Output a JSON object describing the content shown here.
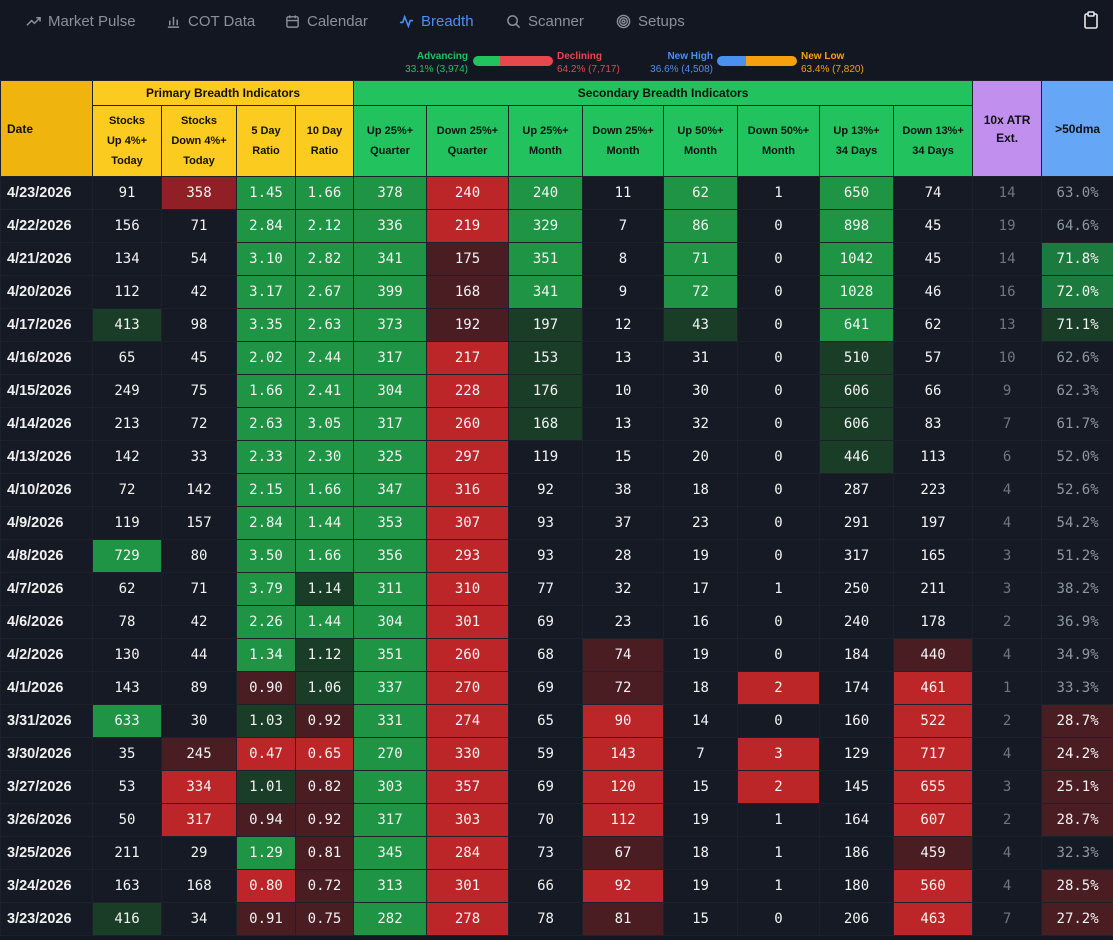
{
  "nav": {
    "items": [
      {
        "label": "Market Pulse",
        "icon": "trend-up-icon"
      },
      {
        "label": "COT Data",
        "icon": "bar-chart-icon"
      },
      {
        "label": "Calendar",
        "icon": "calendar-icon"
      },
      {
        "label": "Breadth",
        "icon": "activity-icon",
        "active": true
      },
      {
        "label": "Scanner",
        "icon": "search-icon"
      },
      {
        "label": "Setups",
        "icon": "target-icon"
      }
    ],
    "clipboard_icon": "clipboard-icon"
  },
  "legend": {
    "advancing_label": "Advancing",
    "advancing_value": "33.1% (3,974)",
    "declining_label": "Declining",
    "declining_value": "64.2% (7,717)",
    "advancing_fraction": 0.331,
    "declining_fraction": 0.642,
    "new_high_label": "New High",
    "new_high_value": "36.6% (4,508)",
    "new_low_label": "New Low",
    "new_low_value": "63.4% (7,820)",
    "new_high_fraction": 0.366,
    "new_low_fraction": 0.634,
    "colors": {
      "advancing": "#22c35e",
      "declining": "#e5484d",
      "new_high": "#4a90f0",
      "new_low": "#f5a00f"
    }
  },
  "table": {
    "date_header": "Date",
    "primary_header": "Primary Breadth Indicators",
    "secondary_header": "Secondary Breadth Indicators",
    "atr_header": "10x ATR Ext.",
    "dma_header": ">50dma",
    "columns": [
      {
        "line1": "Stocks",
        "line2": "Up 4%+",
        "line3": "Today"
      },
      {
        "line1": "Stocks",
        "line2": "Down 4%+",
        "line3": "Today"
      },
      {
        "line1": "5 Day",
        "line2": "Ratio"
      },
      {
        "line1": "10 Day",
        "line2": "Ratio"
      },
      {
        "line1": "Up 25%+",
        "line2": "Quarter"
      },
      {
        "line1": "Down 25%+",
        "line2": "Quarter"
      },
      {
        "line1": "Up 25%+",
        "line2": "Month"
      },
      {
        "line1": "Down 25%+",
        "line2": "Month"
      },
      {
        "line1": "Up 50%+",
        "line2": "Month"
      },
      {
        "line1": "Down 50%+",
        "line2": "Month"
      },
      {
        "line1": "Up 13%+",
        "line2": "34 Days"
      },
      {
        "line1": "Down 13%+",
        "line2": "34 Days"
      }
    ],
    "rows": [
      {
        "date": "4/23/2026",
        "cells": [
          "91",
          "358",
          "1.45",
          "1.66",
          "378",
          "240",
          "240",
          "11",
          "62",
          "1",
          "650",
          "74",
          "14",
          "63.0%"
        ],
        "shades": [
          "",
          "r2",
          "g3",
          "g3",
          "g3",
          "r3",
          "g3",
          "",
          "g3",
          "",
          "g3",
          "",
          "",
          ""
        ]
      },
      {
        "date": "4/22/2026",
        "cells": [
          "156",
          "71",
          "2.84",
          "2.12",
          "336",
          "219",
          "329",
          "7",
          "86",
          "0",
          "898",
          "45",
          "19",
          "64.6%"
        ],
        "shades": [
          "",
          "",
          "g3",
          "g3",
          "g3",
          "r3",
          "g3",
          "",
          "g3",
          "",
          "g3",
          "",
          "",
          ""
        ]
      },
      {
        "date": "4/21/2026",
        "cells": [
          "134",
          "54",
          "3.10",
          "2.82",
          "341",
          "175",
          "351",
          "8",
          "71",
          "0",
          "1042",
          "45",
          "14",
          "71.8%"
        ],
        "shades": [
          "",
          "",
          "g3",
          "g3",
          "g3",
          "r1",
          "g3",
          "",
          "g3",
          "",
          "g3",
          "",
          "",
          "g2"
        ]
      },
      {
        "date": "4/20/2026",
        "cells": [
          "112",
          "42",
          "3.17",
          "2.67",
          "399",
          "168",
          "341",
          "9",
          "72",
          "0",
          "1028",
          "46",
          "16",
          "72.0%"
        ],
        "shades": [
          "",
          "",
          "g3",
          "g3",
          "g3",
          "r1",
          "g3",
          "",
          "g3",
          "",
          "g3",
          "",
          "",
          "g2"
        ]
      },
      {
        "date": "4/17/2026",
        "cells": [
          "413",
          "98",
          "3.35",
          "2.63",
          "373",
          "192",
          "197",
          "12",
          "43",
          "0",
          "641",
          "62",
          "13",
          "71.1%"
        ],
        "shades": [
          "g1",
          "",
          "g3",
          "g3",
          "g3",
          "r1",
          "g1",
          "",
          "g1",
          "",
          "g3",
          "",
          "",
          "g1"
        ]
      },
      {
        "date": "4/16/2026",
        "cells": [
          "65",
          "45",
          "2.02",
          "2.44",
          "317",
          "217",
          "153",
          "13",
          "31",
          "0",
          "510",
          "57",
          "10",
          "62.6%"
        ],
        "shades": [
          "",
          "",
          "g3",
          "g3",
          "g3",
          "r3",
          "g1",
          "",
          "",
          "",
          "g1",
          "",
          "",
          ""
        ]
      },
      {
        "date": "4/15/2026",
        "cells": [
          "249",
          "75",
          "1.66",
          "2.41",
          "304",
          "228",
          "176",
          "10",
          "30",
          "0",
          "606",
          "66",
          "9",
          "62.3%"
        ],
        "shades": [
          "",
          "",
          "g3",
          "g3",
          "g3",
          "r3",
          "g1",
          "",
          "",
          "",
          "g1",
          "",
          "",
          ""
        ]
      },
      {
        "date": "4/14/2026",
        "cells": [
          "213",
          "72",
          "2.63",
          "3.05",
          "317",
          "260",
          "168",
          "13",
          "32",
          "0",
          "606",
          "83",
          "7",
          "61.7%"
        ],
        "shades": [
          "",
          "",
          "g3",
          "g3",
          "g3",
          "r3",
          "g1",
          "",
          "",
          "",
          "g1",
          "",
          "",
          ""
        ]
      },
      {
        "date": "4/13/2026",
        "cells": [
          "142",
          "33",
          "2.33",
          "2.30",
          "325",
          "297",
          "119",
          "15",
          "20",
          "0",
          "446",
          "113",
          "6",
          "52.0%"
        ],
        "shades": [
          "",
          "",
          "g3",
          "g3",
          "g3",
          "r3",
          "",
          "",
          "",
          "",
          "g1",
          "",
          "",
          ""
        ]
      },
      {
        "date": "4/10/2026",
        "cells": [
          "72",
          "142",
          "2.15",
          "1.66",
          "347",
          "316",
          "92",
          "38",
          "18",
          "0",
          "287",
          "223",
          "4",
          "52.6%"
        ],
        "shades": [
          "",
          "",
          "g3",
          "g3",
          "g3",
          "r3",
          "",
          "",
          "",
          "",
          "",
          "",
          "",
          ""
        ]
      },
      {
        "date": "4/9/2026",
        "cells": [
          "119",
          "157",
          "2.84",
          "1.44",
          "353",
          "307",
          "93",
          "37",
          "23",
          "0",
          "291",
          "197",
          "4",
          "54.2%"
        ],
        "shades": [
          "",
          "",
          "g3",
          "g3",
          "g3",
          "r3",
          "",
          "",
          "",
          "",
          "",
          "",
          "",
          ""
        ]
      },
      {
        "date": "4/8/2026",
        "cells": [
          "729",
          "80",
          "3.50",
          "1.66",
          "356",
          "293",
          "93",
          "28",
          "19",
          "0",
          "317",
          "165",
          "3",
          "51.2%"
        ],
        "shades": [
          "g3",
          "",
          "g3",
          "g3",
          "g3",
          "r3",
          "",
          "",
          "",
          "",
          "",
          "",
          "",
          ""
        ]
      },
      {
        "date": "4/7/2026",
        "cells": [
          "62",
          "71",
          "3.79",
          "1.14",
          "311",
          "310",
          "77",
          "32",
          "17",
          "1",
          "250",
          "211",
          "3",
          "38.2%"
        ],
        "shades": [
          "",
          "",
          "g3",
          "g1",
          "g3",
          "r3",
          "",
          "",
          "",
          "",
          "",
          "",
          "",
          ""
        ]
      },
      {
        "date": "4/6/2026",
        "cells": [
          "78",
          "42",
          "2.26",
          "1.44",
          "304",
          "301",
          "69",
          "23",
          "16",
          "0",
          "240",
          "178",
          "2",
          "36.9%"
        ],
        "shades": [
          "",
          "",
          "g3",
          "g3",
          "g3",
          "r3",
          "",
          "",
          "",
          "",
          "",
          "",
          "",
          ""
        ]
      },
      {
        "date": "4/2/2026",
        "cells": [
          "130",
          "44",
          "1.34",
          "1.12",
          "351",
          "260",
          "68",
          "74",
          "19",
          "0",
          "184",
          "440",
          "4",
          "34.9%"
        ],
        "shades": [
          "",
          "",
          "g3",
          "g1",
          "g3",
          "r3",
          "",
          "r1",
          "",
          "",
          "",
          "r1",
          "",
          ""
        ]
      },
      {
        "date": "4/1/2026",
        "cells": [
          "143",
          "89",
          "0.90",
          "1.06",
          "337",
          "270",
          "69",
          "72",
          "18",
          "2",
          "174",
          "461",
          "1",
          "33.3%"
        ],
        "shades": [
          "",
          "",
          "r1",
          "g1",
          "g3",
          "r3",
          "",
          "r1",
          "",
          "r3",
          "",
          "r3",
          "",
          ""
        ]
      },
      {
        "date": "3/31/2026",
        "cells": [
          "633",
          "30",
          "1.03",
          "0.92",
          "331",
          "274",
          "65",
          "90",
          "14",
          "0",
          "160",
          "522",
          "2",
          "28.7%"
        ],
        "shades": [
          "g3",
          "",
          "g1",
          "r1",
          "g3",
          "r3",
          "",
          "r3",
          "",
          "",
          "",
          "r3",
          "",
          "r1"
        ]
      },
      {
        "date": "3/30/2026",
        "cells": [
          "35",
          "245",
          "0.47",
          "0.65",
          "270",
          "330",
          "59",
          "143",
          "7",
          "3",
          "129",
          "717",
          "4",
          "24.2%"
        ],
        "shades": [
          "",
          "r1",
          "r3",
          "r3",
          "g3",
          "r3",
          "",
          "r3",
          "",
          "r3",
          "",
          "r3",
          "",
          "r1"
        ]
      },
      {
        "date": "3/27/2026",
        "cells": [
          "53",
          "334",
          "1.01",
          "0.82",
          "303",
          "357",
          "69",
          "120",
          "15",
          "2",
          "145",
          "655",
          "3",
          "25.1%"
        ],
        "shades": [
          "",
          "r3",
          "g1",
          "r1",
          "g3",
          "r3",
          "",
          "r3",
          "",
          "r3",
          "",
          "r3",
          "",
          "r1"
        ]
      },
      {
        "date": "3/26/2026",
        "cells": [
          "50",
          "317",
          "0.94",
          "0.92",
          "317",
          "303",
          "70",
          "112",
          "19",
          "1",
          "164",
          "607",
          "2",
          "28.7%"
        ],
        "shades": [
          "",
          "r3",
          "r1",
          "r1",
          "g3",
          "r3",
          "",
          "r3",
          "",
          "",
          "",
          "r3",
          "",
          "r1"
        ]
      },
      {
        "date": "3/25/2026",
        "cells": [
          "211",
          "29",
          "1.29",
          "0.81",
          "345",
          "284",
          "73",
          "67",
          "18",
          "1",
          "186",
          "459",
          "4",
          "32.3%"
        ],
        "shades": [
          "",
          "",
          "g3",
          "r1",
          "g3",
          "r3",
          "",
          "r1",
          "",
          "",
          "",
          "r1",
          "",
          ""
        ]
      },
      {
        "date": "3/24/2026",
        "cells": [
          "163",
          "168",
          "0.80",
          "0.72",
          "313",
          "301",
          "66",
          "92",
          "19",
          "1",
          "180",
          "560",
          "4",
          "28.5%"
        ],
        "shades": [
          "",
          "",
          "r3",
          "r1",
          "g3",
          "r3",
          "",
          "r3",
          "",
          "",
          "",
          "r3",
          "",
          "r1"
        ]
      },
      {
        "date": "3/23/2026",
        "cells": [
          "416",
          "34",
          "0.91",
          "0.75",
          "282",
          "278",
          "78",
          "81",
          "15",
          "0",
          "206",
          "463",
          "7",
          "27.2%"
        ],
        "shades": [
          "g1",
          "",
          "r1",
          "r1",
          "g3",
          "r3",
          "",
          "r1",
          "",
          "",
          "",
          "r3",
          "",
          "r1"
        ]
      }
    ]
  }
}
